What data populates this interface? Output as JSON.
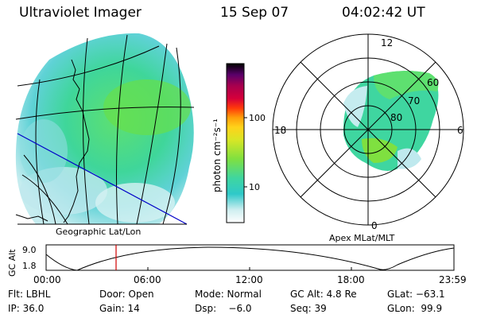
{
  "header": {
    "instrument": "Ultraviolet Imager",
    "date": "15 Sep 07",
    "time": "04:02:42 UT"
  },
  "left_panel": {
    "caption": "Geographic Lat/Lon"
  },
  "colorbar": {
    "unit_label": "photon cm⁻²s⁻¹",
    "ticks": [
      "100",
      "10"
    ],
    "colors": [
      "#ffffff",
      "#cfeef0",
      "#8fd9df",
      "#2fc9c9",
      "#3fd6a0",
      "#50e070",
      "#7fe040",
      "#aee82a",
      "#d8e626",
      "#ffd21a",
      "#ff9f0a",
      "#ff5a0a",
      "#ff1a1a",
      "#d6003a",
      "#a8004e",
      "#7a0060",
      "#4a006a",
      "#1f0040",
      "#000000"
    ]
  },
  "right_panel": {
    "caption": "Apex MLat/MLT",
    "mlt_labels": {
      "top": "12",
      "bottom": "0",
      "left": "18",
      "right": "6"
    },
    "mlat_labels": [
      "60",
      "70",
      "80"
    ]
  },
  "altitude_plot": {
    "ylabel": "GC Alt",
    "y_ticks": [
      "9.0",
      "1.8"
    ],
    "x_ticks": [
      "00:00",
      "06:00",
      "12:00",
      "18:00",
      "23:59"
    ],
    "marker_time": "04:02"
  },
  "info": {
    "flt": "Flt: LBHL",
    "door": "Door: Open",
    "mode": "Mode: Normal",
    "gc_alt": "GC Alt: 4.8 Re",
    "glat": "GLat: −63.1",
    "ip": "IP: 36.0",
    "gain": "Gain: 14",
    "dsp": "Dsp:    −6.0",
    "seq": "Seq: 39",
    "glon": "GLon:  99.9"
  }
}
